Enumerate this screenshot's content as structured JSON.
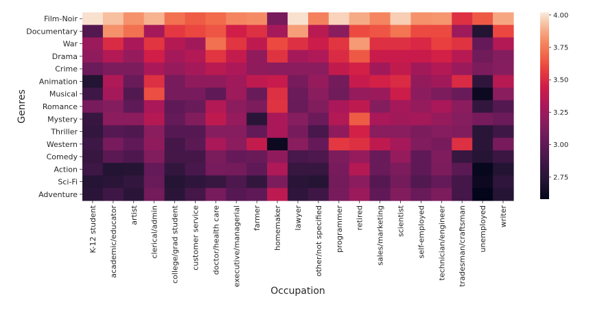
{
  "chart_data": {
    "type": "heatmap",
    "title": "",
    "xlabel": "Occupation",
    "ylabel": "Genres",
    "colormap": "rocket",
    "colorbar": {
      "range": [
        2.58,
        4.02
      ],
      "ticks": [
        2.75,
        3.0,
        3.25,
        3.5,
        3.75,
        4.0
      ],
      "tick_labels": [
        "2.75",
        "3.00",
        "3.25",
        "3.50",
        "3.75",
        "4.00"
      ],
      "placement": "right"
    },
    "x_categories": [
      "K-12 student",
      "academic/educator",
      "artist",
      "clerical/admin",
      "college/grad student",
      "customer service",
      "doctor/health care",
      "executive/managerial",
      "farmer",
      "homemaker",
      "lawyer",
      "other/not specified",
      "programmer",
      "retired",
      "sales/marketing",
      "scientist",
      "self-employed",
      "technician/engineer",
      "tradesman/craftsman",
      "unemployed",
      "writer"
    ],
    "y_categories": [
      "Film-Noir",
      "Documentary",
      "War",
      "Drama",
      "Crime",
      "Animation",
      "Musical",
      "Romance",
      "Mystery",
      "Thriller",
      "Western",
      "Comedy",
      "Action",
      "Sci-Fi",
      "Adventure"
    ],
    "values": [
      [
        4.0,
        3.93,
        3.82,
        3.9,
        3.72,
        3.66,
        3.7,
        3.78,
        3.8,
        3.1,
        4.0,
        3.77,
        3.97,
        3.88,
        3.78,
        3.96,
        3.82,
        3.83,
        3.52,
        3.65,
        3.87
      ],
      [
        2.95,
        3.82,
        3.72,
        3.28,
        3.55,
        3.6,
        3.64,
        3.45,
        3.52,
        3.28,
        3.85,
        3.36,
        3.17,
        3.61,
        3.64,
        3.73,
        3.61,
        3.61,
        3.25,
        2.72,
        3.6
      ],
      [
        3.24,
        3.5,
        3.3,
        3.54,
        3.34,
        3.27,
        3.72,
        3.54,
        3.38,
        3.61,
        3.52,
        3.43,
        3.54,
        3.84,
        3.52,
        3.52,
        3.49,
        3.58,
        3.53,
        3.03,
        3.33
      ],
      [
        3.2,
        3.33,
        3.22,
        3.45,
        3.28,
        3.33,
        3.54,
        3.4,
        3.2,
        3.53,
        3.28,
        3.32,
        3.5,
        3.65,
        3.42,
        3.42,
        3.42,
        3.46,
        3.35,
        3.07,
        3.15
      ],
      [
        3.05,
        3.12,
        3.12,
        3.3,
        3.22,
        3.28,
        3.36,
        3.31,
        3.2,
        3.18,
        3.18,
        3.18,
        3.39,
        3.46,
        3.27,
        3.39,
        3.27,
        3.33,
        3.24,
        3.12,
        3.16
      ],
      [
        2.72,
        3.32,
        3.04,
        3.52,
        3.1,
        3.2,
        3.2,
        3.26,
        3.38,
        3.41,
        3.1,
        3.22,
        3.08,
        3.41,
        3.46,
        3.5,
        3.21,
        3.27,
        3.5,
        2.78,
        3.35
      ],
      [
        2.86,
        3.28,
        2.94,
        3.62,
        3.1,
        3.1,
        3.0,
        3.25,
        3.04,
        3.52,
        3.05,
        3.17,
        3.07,
        3.22,
        3.24,
        3.43,
        3.18,
        3.12,
        3.04,
        2.62,
        3.17
      ],
      [
        3.1,
        3.15,
        3.0,
        3.3,
        3.0,
        3.04,
        3.33,
        3.18,
        3.12,
        3.53,
        3.04,
        3.14,
        3.3,
        3.38,
        3.15,
        3.28,
        3.22,
        3.3,
        3.18,
        2.8,
        2.95
      ],
      [
        2.82,
        3.18,
        3.18,
        3.34,
        3.02,
        3.14,
        3.38,
        3.22,
        2.76,
        3.3,
        3.16,
        3.05,
        3.33,
        3.66,
        3.3,
        3.27,
        3.28,
        3.22,
        3.16,
        3.1,
        3.05
      ],
      [
        2.8,
        2.96,
        2.93,
        3.17,
        2.96,
        2.96,
        3.16,
        3.16,
        3.02,
        3.3,
        3.1,
        2.9,
        3.2,
        3.46,
        3.17,
        3.17,
        3.12,
        3.16,
        3.14,
        2.75,
        2.86
      ],
      [
        2.85,
        3.1,
        3.0,
        3.2,
        2.88,
        2.98,
        3.3,
        3.18,
        3.4,
        2.62,
        3.17,
        3.03,
        3.55,
        3.52,
        3.38,
        3.28,
        3.14,
        3.1,
        3.52,
        2.76,
        3.1
      ],
      [
        2.82,
        2.98,
        2.92,
        3.14,
        2.88,
        2.88,
        3.11,
        3.03,
        3.04,
        3.2,
        2.9,
        2.92,
        3.12,
        3.22,
        3.04,
        3.22,
        3.0,
        3.13,
        2.82,
        2.74,
        2.84
      ],
      [
        2.85,
        2.72,
        2.74,
        3.02,
        2.8,
        2.9,
        3.1,
        3.08,
        3.0,
        3.32,
        2.82,
        2.82,
        3.1,
        3.34,
        3.04,
        3.12,
        3.0,
        3.12,
        2.98,
        2.6,
        2.72
      ],
      [
        2.74,
        2.76,
        2.8,
        3.04,
        2.74,
        2.78,
        2.82,
        2.92,
        2.8,
        3.12,
        2.76,
        2.74,
        3.08,
        3.18,
        2.96,
        3.08,
        2.94,
        3.02,
        2.88,
        2.62,
        2.78
      ],
      [
        2.76,
        2.86,
        2.76,
        3.08,
        2.76,
        2.88,
        3.1,
        2.96,
        3.0,
        3.37,
        2.78,
        2.86,
        3.1,
        3.24,
        3.0,
        3.14,
        3.04,
        3.12,
        2.88,
        2.58,
        2.74
      ]
    ]
  }
}
